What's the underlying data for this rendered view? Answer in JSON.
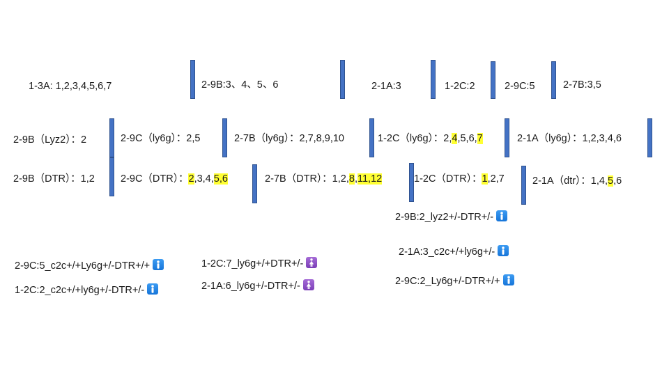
{
  "row1": {
    "a": "1-3A:  1,2,3,4,5,6,7",
    "b": "2-9B:3、4、5、6",
    "c": "2-1A:3",
    "d": "1-2C:2",
    "e": "2-9C:5",
    "f": "2-7B:3,5"
  },
  "row2": {
    "a_pre": "2-9B（Lyz2）：2",
    "b_pre": "2-9C（ly6g）：2,5",
    "c_pre": "2-7B（ly6g）：2,7,8,9,10",
    "d_pre": "1-2C（ly6g）：2,",
    "d_h1": "4",
    "d_mid": ",5,6,",
    "d_h2": "7",
    "e_pre": "2-1A（ly6g）：1,2,3,4,6"
  },
  "row3": {
    "a_pre": "2-9B（DTR）：1,2",
    "b_pre": "2-9C（DTR）：",
    "b_h1": "2",
    "b_mid": ",3,4,",
    "b_h2": "5,6",
    "c_pre": "2-7B（DTR）：1,2,",
    "c_h1": "8",
    "c_mid": ",",
    "c_h2": "11,12",
    "d_pre": "1-2C（DTR）：",
    "d_h1": "1",
    "d_post": ",2,7",
    "e_pre": "2-1A（dtr）：1,4,",
    "e_h1": "5",
    "e_post": ",6"
  },
  "genotypes": {
    "g1": "2-9B:2_lyz2+/-DTR+/-",
    "g2": "2-1A:3_c2c+/+ly6g+/-",
    "g3": "2-9C:2_Ly6g+/-DTR+/+",
    "g4": "2-9C:5_c2c+/+Ly6g+/-DTR+/+",
    "g5": "1-2C:2_c2c+/+ly6g+/-DTR+/-",
    "g6": "1-2C:7_ly6g+/+DTR+/-",
    "g7": "2-1A:6_ly6g+/-DTR+/-"
  },
  "icons": {
    "male": "male-sign-icon",
    "female": "female-sign-icon"
  },
  "colors": {
    "highlight": "#ffff33",
    "bar": "#4472c4"
  }
}
